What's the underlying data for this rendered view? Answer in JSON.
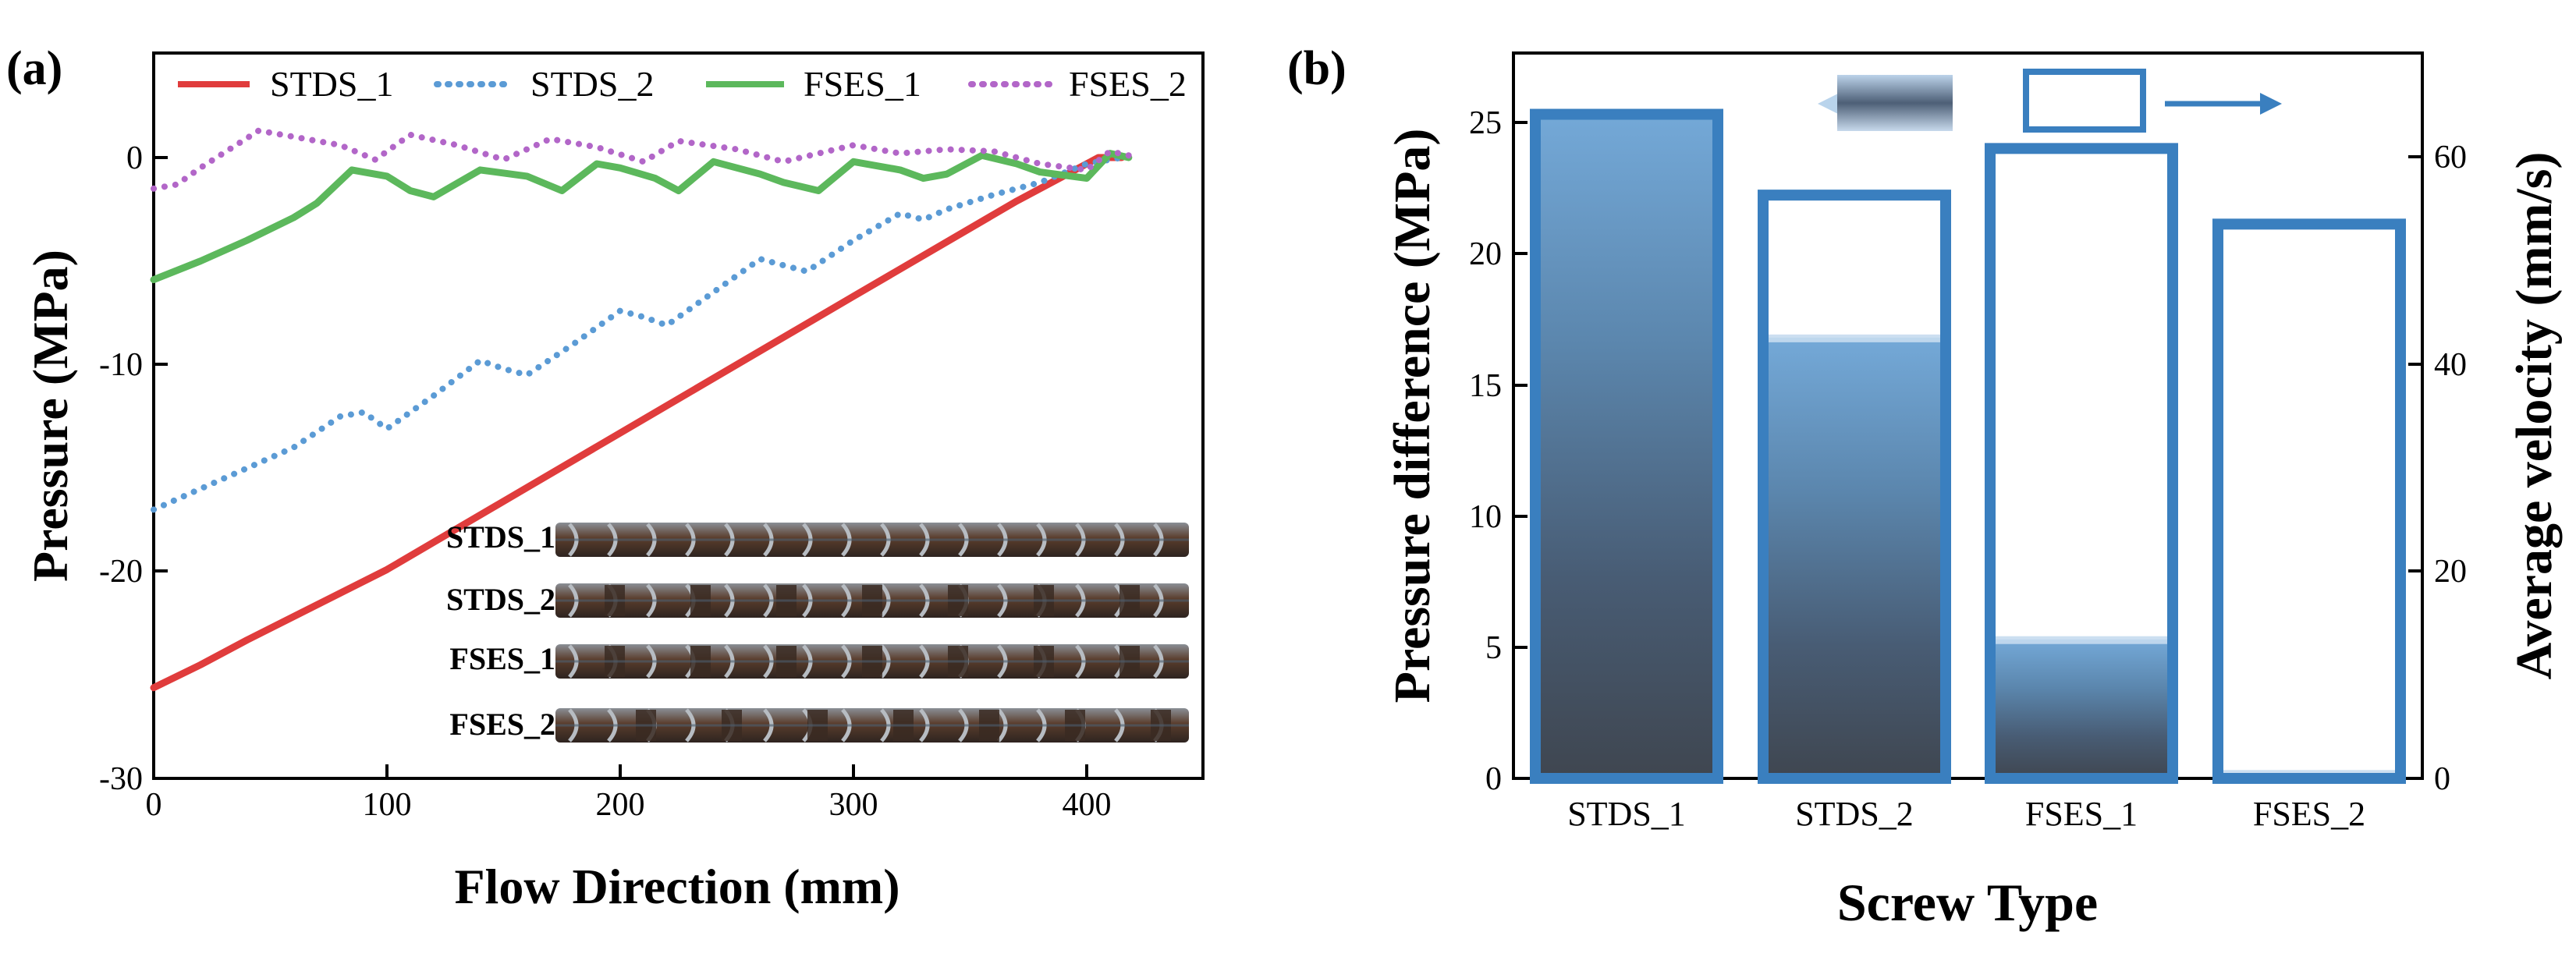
{
  "panel_a": {
    "label": "(a)",
    "xlabel": "Flow Direction (mm)",
    "ylabel": "Pressure (MPa)",
    "xticks": [
      "0",
      "100",
      "200",
      "300",
      "400"
    ],
    "yticks": [
      "0",
      "-10",
      "-20",
      "-30"
    ],
    "inset_labels": [
      "STDS_1",
      "STDS_2",
      "FSES_1",
      "FSES_2"
    ]
  },
  "panel_b": {
    "label": "(b)",
    "xlabel": "Screw Type",
    "ylabel_left": "Pressure difference (MPa)",
    "ylabel_right": "Average velocity (mm/s)",
    "yticks_left": [
      "0",
      "5",
      "10",
      "15",
      "20",
      "25"
    ],
    "yticks_right": [
      "0",
      "20",
      "40",
      "60"
    ]
  },
  "colors": {
    "stds1": "#e03c3c",
    "stds2": "#5b9bd5",
    "fses1": "#5cb85c",
    "fses2": "#b266c8",
    "bar_edge": "#3a7fbf",
    "bar_fill": "#6fa6d6"
  },
  "chart_data": [
    {
      "type": "line",
      "title": "",
      "xlabel": "Flow Direction (mm)",
      "ylabel": "Pressure (MPa)",
      "xlim": [
        0,
        450
      ],
      "ylim": [
        -30,
        4
      ],
      "legend": "top",
      "series": [
        {
          "name": "STDS_1",
          "style": "solid",
          "color": "#e03c3c",
          "x": [
            0,
            20,
            40,
            100,
            200,
            300,
            370,
            390,
            405,
            415
          ],
          "y": [
            -25.6,
            -24.5,
            -23.3,
            -19.9,
            -13.3,
            -6.7,
            -2.1,
            -0.9,
            0.0,
            0.0
          ]
        },
        {
          "name": "STDS_2",
          "style": "dotted",
          "color": "#5b9bd5",
          "x": [
            0,
            20,
            40,
            60,
            80,
            90,
            100,
            120,
            140,
            150,
            160,
            180,
            200,
            210,
            220,
            240,
            260,
            270,
            280,
            300,
            320,
            330,
            340,
            360,
            380,
            400,
            415
          ],
          "y": [
            -17.0,
            -16.0,
            -15.0,
            -14.0,
            -12.5,
            -12.3,
            -13.1,
            -11.5,
            -9.8,
            -10.2,
            -10.5,
            -9.0,
            -7.4,
            -7.7,
            -8.1,
            -6.5,
            -4.9,
            -5.2,
            -5.5,
            -4.0,
            -2.7,
            -3.0,
            -2.5,
            -1.8,
            -1.2,
            -0.3,
            0.0
          ]
        },
        {
          "name": "FSES_1",
          "style": "solid",
          "color": "#5cb85c",
          "x": [
            0,
            20,
            40,
            60,
            70,
            85,
            100,
            110,
            120,
            140,
            160,
            175,
            190,
            200,
            215,
            225,
            240,
            260,
            270,
            285,
            300,
            320,
            330,
            340,
            355,
            370,
            380,
            400,
            410,
            418
          ],
          "y": [
            -5.9,
            -5.0,
            -4.0,
            -2.9,
            -2.2,
            -0.6,
            -0.9,
            -1.6,
            -1.9,
            -0.6,
            -0.9,
            -1.6,
            -0.3,
            -0.5,
            -1.0,
            -1.6,
            -0.2,
            -0.8,
            -1.2,
            -1.6,
            -0.2,
            -0.6,
            -1.0,
            -0.8,
            0.1,
            -0.3,
            -0.7,
            -1.0,
            0.2,
            0.0
          ]
        },
        {
          "name": "FSES_2",
          "style": "dotted",
          "color": "#b266c8",
          "x": [
            0,
            10,
            20,
            45,
            60,
            80,
            95,
            110,
            130,
            150,
            170,
            190,
            210,
            225,
            250,
            270,
            300,
            320,
            340,
            360,
            380,
            400,
            410,
            418
          ],
          "y": [
            -1.5,
            -1.3,
            -0.5,
            1.3,
            1.0,
            0.6,
            -0.1,
            1.1,
            0.6,
            -0.1,
            0.9,
            0.5,
            -0.2,
            0.8,
            0.4,
            -0.2,
            0.6,
            0.2,
            0.4,
            0.3,
            -0.3,
            -0.6,
            0.3,
            0.1
          ]
        }
      ]
    },
    {
      "type": "bar",
      "title": "",
      "xlabel": "Screw Type",
      "ylabel": "Pressure difference (MPa)",
      "ylabel_right": "Average velocity (mm/s)",
      "categories": [
        "STDS_1",
        "STDS_2",
        "FSES_1",
        "FSES_2"
      ],
      "ylim": [
        0,
        27.5
      ],
      "ylim_right": [
        0,
        70
      ],
      "series": [
        {
          "name": "Pressure difference",
          "axis": "left",
          "style": "gradient-filled",
          "values": [
            25.4,
            16.8,
            5.3,
            0.2
          ]
        },
        {
          "name": "Average velocity",
          "axis": "right",
          "style": "open",
          "values": [
            64.1,
            56.3,
            60.8,
            53.5
          ]
        }
      ]
    }
  ]
}
